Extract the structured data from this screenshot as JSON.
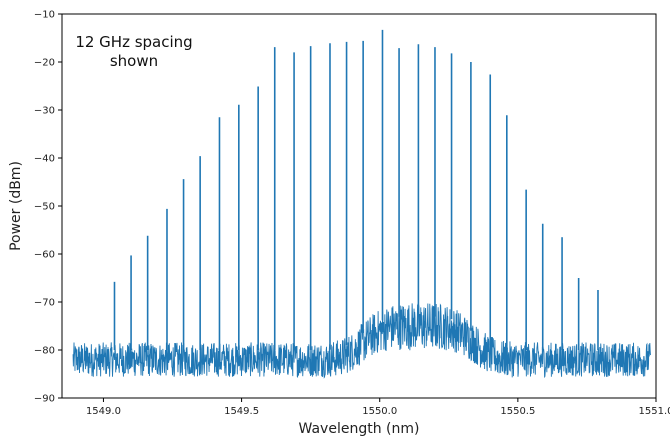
{
  "chart_data": {
    "type": "line",
    "xlabel": "Wavelength (nm)",
    "ylabel": "Power (dBm)",
    "xlim": [
      1548.85,
      1551.0
    ],
    "ylim": [
      -90,
      -10
    ],
    "xticks": [
      1549.0,
      1549.5,
      1550.0,
      1550.5,
      1551.0
    ],
    "xtick_labels": [
      "1549.0",
      "1549.5",
      "1550.0",
      "1550.5",
      "1551.0"
    ],
    "yticks": [
      -90,
      -80,
      -70,
      -60,
      -50,
      -40,
      -30,
      -20,
      -10
    ],
    "ytick_labels": [
      "−90",
      "−80",
      "−70",
      "−60",
      "−50",
      "−40",
      "−30",
      "−20",
      "−10"
    ],
    "grid": false,
    "annotation": {
      "line1": "12 GHz spacing",
      "line2": "shown"
    },
    "series": [
      {
        "color": "#1f77b4",
        "x": [
          1549.04,
          1549.1,
          1549.16,
          1549.23,
          1549.29,
          1549.35,
          1549.42,
          1549.49,
          1549.56,
          1549.62,
          1549.69,
          1549.75,
          1549.82,
          1549.88,
          1549.94,
          1550.01,
          1550.07,
          1550.14,
          1550.2,
          1550.26,
          1550.33,
          1550.4,
          1550.46,
          1550.53,
          1550.59,
          1550.66,
          1550.72,
          1550.79
        ],
        "y": [
          -65.8,
          -60.3,
          -56.2,
          -50.6,
          -44.4,
          -39.6,
          -31.5,
          -28.9,
          -25.1,
          -16.9,
          -18.0,
          -16.7,
          -16.1,
          -15.8,
          -15.6,
          -13.3,
          -17.1,
          -16.3,
          -16.9,
          -18.2,
          -20.0,
          -22.6,
          -31.1,
          -46.6,
          -53.7,
          -56.5,
          -65.0,
          -67.5
        ],
        "noise_floor_dbm": -82,
        "noise_floor_peak_dbm": -75
      }
    ]
  }
}
